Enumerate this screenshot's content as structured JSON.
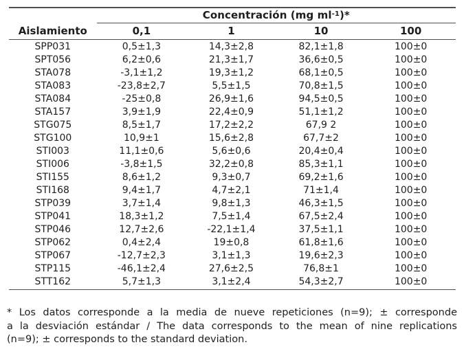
{
  "colors": {
    "background": "#ffffff",
    "text": "#1e1e1e",
    "rule": "#4f4f4f"
  },
  "table": {
    "group_header": {
      "prefix": "Concentración (mg ml",
      "superscript": "-1",
      "suffix": ")*"
    },
    "columns": [
      "Aislamiento",
      "0,1",
      "1",
      "10",
      "100"
    ],
    "rows": [
      [
        "SPP031",
        "0,5±1,3",
        "14,3±2,8",
        "82,1±1,8",
        "100±0"
      ],
      [
        "SPT056",
        "6,2±0,6",
        "21,3±1,7",
        "36,6±0,5",
        "100±0"
      ],
      [
        "STA078",
        "-3,1±1,2",
        "19,3±1,2",
        "68,1±0,5",
        "100±0"
      ],
      [
        "STA083",
        "-23,8±2,7",
        "5,5±1,5",
        "70,8±1,5",
        "100±0"
      ],
      [
        "STA084",
        "-25±0,8",
        "26,9±1,6",
        "94,5±0,5",
        "100±0"
      ],
      [
        "STA157",
        "3,9±1,9",
        "22,4±0,9",
        "51,1±1,2",
        "100±0"
      ],
      [
        "STG075",
        "8,5±1,7",
        "17,2±2,2",
        "67,9 2",
        "100±0"
      ],
      [
        "STG100",
        "10,9±1",
        "15,6±2,8",
        "67,7±2",
        "100±0"
      ],
      [
        "STI003",
        "11,1±0,6",
        "5,6±0,6",
        "20,4±0,4",
        "100±0"
      ],
      [
        "STI006",
        "-3,8±1,5",
        "32,2±0,8",
        "85,3±1,1",
        "100±0"
      ],
      [
        "STI155",
        "8,6±1,2",
        "9,3±0,7",
        "69,2±1,6",
        "100±0"
      ],
      [
        "STI168",
        "9,4±1,7",
        "4,7±2,1",
        "71±1,4",
        "100±0"
      ],
      [
        "STP039",
        "3,7±1,4",
        "9,8±1,3",
        "46,3±1,5",
        "100±0"
      ],
      [
        "STP041",
        "18,3±1,2",
        "7,5±1,4",
        "67,5±2,4",
        "100±0"
      ],
      [
        "STP046",
        "12,7±2,6",
        "-22,1±1,4",
        "37,5±1,1",
        "100±0"
      ],
      [
        "STP062",
        "0,4±2,4",
        "19±0,8",
        "61,8±1,6",
        "100±0"
      ],
      [
        "STP067",
        "-12,7±2,3",
        "3,1±1,3",
        "19,6±2,3",
        "100±0"
      ],
      [
        "STP115",
        "-46,1±2,4",
        "27,6±2,5",
        "76,8±1",
        "100±0"
      ],
      [
        "STT162",
        "5,7±1,3",
        "3,1±2,4",
        "54,3±2,7",
        "100±0"
      ]
    ]
  },
  "footnote": {
    "lines": [
      "* Los datos corresponde a la media de nueve repeticiones (n=9); ± corresponde",
      "a la desviación estándar / The data corresponds to the mean of nine replications",
      "(n=9); ± corresponds to the standard deviation."
    ]
  }
}
